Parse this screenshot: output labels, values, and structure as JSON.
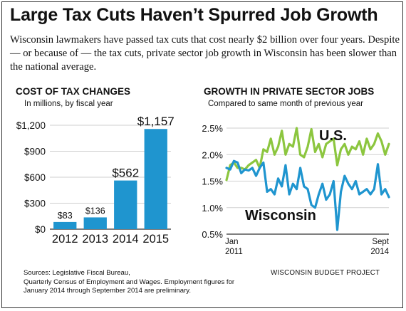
{
  "title": "Large Tax Cuts Haven’t Spurred Job Growth",
  "intro": "Wisconsin lawmakers have passed tax cuts that cost nearly $2 billion over four years. Despite — or because of — the tax cuts, private sector job growth in Wisconsin has been slower than the national average.",
  "footer": {
    "sources": "Sources: Legislative Fiscal Bureau,",
    "line2": "Quarterly Census of Employment and Wages. Employment figures for",
    "line3": "January 2014 through September 2014 are preliminary.",
    "credit": "WISCONSIN BUDGET PROJECT"
  },
  "colors": {
    "bar": "#1f95cf",
    "wisconsin": "#1f95cf",
    "us": "#8cc63f",
    "grid": "#cfcfcf",
    "axis": "#333333"
  },
  "chart_data": [
    {
      "type": "bar",
      "title": "COST OF TAX CHANGES",
      "subtitle": "In millions, by fiscal year",
      "categories": [
        "2012",
        "2013",
        "2014",
        "2015"
      ],
      "values": [
        83,
        136,
        562,
        1157
      ],
      "data_labels": [
        "$83",
        "$136",
        "$562",
        "$1,157"
      ],
      "yticks": [
        "$0",
        "$300",
        "$600",
        "$900",
        "$1,200"
      ],
      "ytick_values": [
        0,
        300,
        600,
        900,
        1200
      ],
      "ylim": [
        0,
        1200
      ],
      "grid": true
    },
    {
      "type": "line",
      "title": "GROWTH IN PRIVATE SECTOR JOBS",
      "subtitle": "Compared to same month of previous year",
      "x_start": "Jan 2011",
      "x_end": "Sept 2014",
      "x_tick_labels": [
        [
          "Jan",
          "2011"
        ],
        [
          "Sept",
          "2014"
        ]
      ],
      "yticks": [
        "0.5%",
        "1.0%",
        "1.5%",
        "2.0%",
        "2.5%"
      ],
      "ytick_values": [
        0.5,
        1.0,
        1.5,
        2.0,
        2.5
      ],
      "ylim": [
        0.5,
        2.6
      ],
      "grid": true,
      "series": [
        {
          "name": "U.S.",
          "values": [
            1.52,
            1.8,
            1.85,
            1.75,
            1.75,
            1.72,
            1.8,
            1.85,
            1.9,
            1.75,
            2.1,
            2.05,
            2.3,
            2.0,
            2.15,
            2.45,
            2.0,
            2.2,
            2.15,
            2.5,
            2.0,
            1.95,
            2.15,
            2.48,
            2.05,
            2.2,
            1.95,
            2.2,
            2.25,
            2.3,
            1.8,
            2.1,
            2.2,
            2.0,
            2.15,
            2.1,
            2.25,
            2.0,
            2.3,
            2.1,
            2.2,
            2.4,
            2.25,
            2.0,
            2.2
          ]
        },
        {
          "name": "Wisconsin",
          "values": [
            1.75,
            1.72,
            1.88,
            1.85,
            1.65,
            1.72,
            1.7,
            1.75,
            1.6,
            1.75,
            1.85,
            1.3,
            1.35,
            1.25,
            1.55,
            1.4,
            1.8,
            1.25,
            1.45,
            1.35,
            1.75,
            1.4,
            1.35,
            1.05,
            1.0,
            1.25,
            1.45,
            1.15,
            1.25,
            1.5,
            0.58,
            1.3,
            1.6,
            1.45,
            1.35,
            1.5,
            1.25,
            1.3,
            1.35,
            1.25,
            1.35,
            1.82,
            1.25,
            1.35,
            1.2
          ]
        }
      ]
    }
  ]
}
